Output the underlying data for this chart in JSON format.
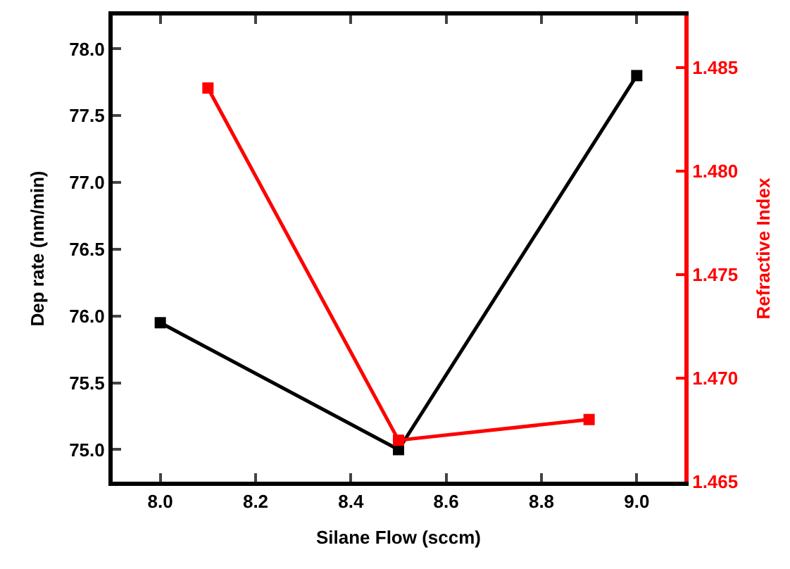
{
  "chart_data": {
    "type": "line",
    "xlabel": "Silane Flow (sccm)",
    "ylabel": "Dep rate (nm/min)",
    "y2label": "Refractive Index",
    "xlim": [
      7.9,
      9.1
    ],
    "xticks": [
      {
        "value": 8.0,
        "label": "8.0"
      },
      8.2,
      8.4,
      8.6,
      8.8,
      {
        "value": 9.0,
        "label": "9.0"
      }
    ],
    "ylim": [
      74.76,
      78.25
    ],
    "yticks": [
      {
        "value": 75.0,
        "label": "75.0"
      },
      75.5,
      {
        "value": 76.0,
        "label": "76.0"
      },
      76.5,
      {
        "value": 77.0,
        "label": "77.0"
      },
      77.5,
      {
        "value": 78.0,
        "label": "78.0"
      }
    ],
    "y2lim": [
      1.465,
      1.4875
    ],
    "y2ticks": [
      1.465,
      {
        "value": 1.47,
        "label": "1.470"
      },
      1.475,
      {
        "value": 1.48,
        "label": "1.480"
      },
      1.485
    ],
    "marker": "square",
    "line_style": "solid",
    "grid": false,
    "series": [
      {
        "color": "#000000",
        "x": [
          8.0,
          8.5,
          9.0
        ],
        "values": [
          75.95,
          75.0,
          77.8
        ]
      },
      {
        "color": "#ff0000",
        "axis": "y2",
        "x": [
          8.1,
          8.5,
          8.9
        ],
        "values": [
          1.484,
          1.467,
          1.468
        ]
      }
    ]
  }
}
